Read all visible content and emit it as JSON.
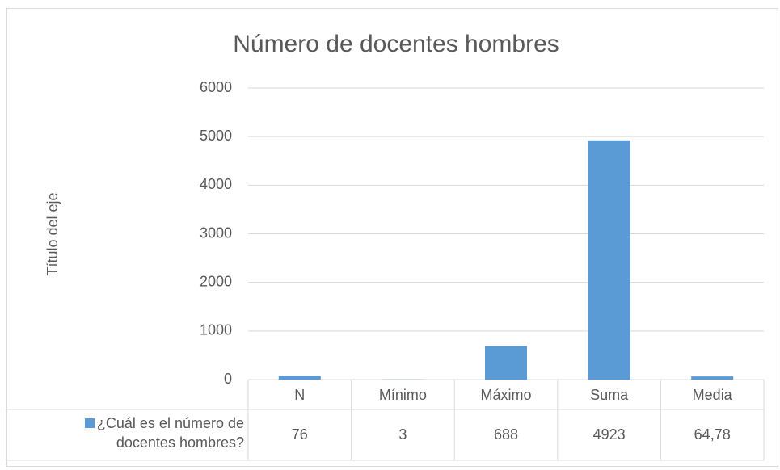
{
  "chart_data": {
    "type": "bar",
    "title": "Número de docentes hombres",
    "y_label": "Título del eje",
    "categories": [
      "N",
      "Mínimo",
      "Máximo",
      "Suma",
      "Media"
    ],
    "series": [
      {
        "name": "¿Cuál es el número de docentes hombres?",
        "color": "#5b9bd5",
        "values": [
          76,
          3,
          688,
          4923,
          64.78
        ],
        "value_labels": [
          "76",
          "3",
          "688",
          "4923",
          "64,78"
        ]
      }
    ],
    "ylim": [
      0,
      6000
    ],
    "yticks": [
      0,
      1000,
      2000,
      3000,
      4000,
      5000,
      6000
    ],
    "grid": true,
    "data_table": true
  }
}
